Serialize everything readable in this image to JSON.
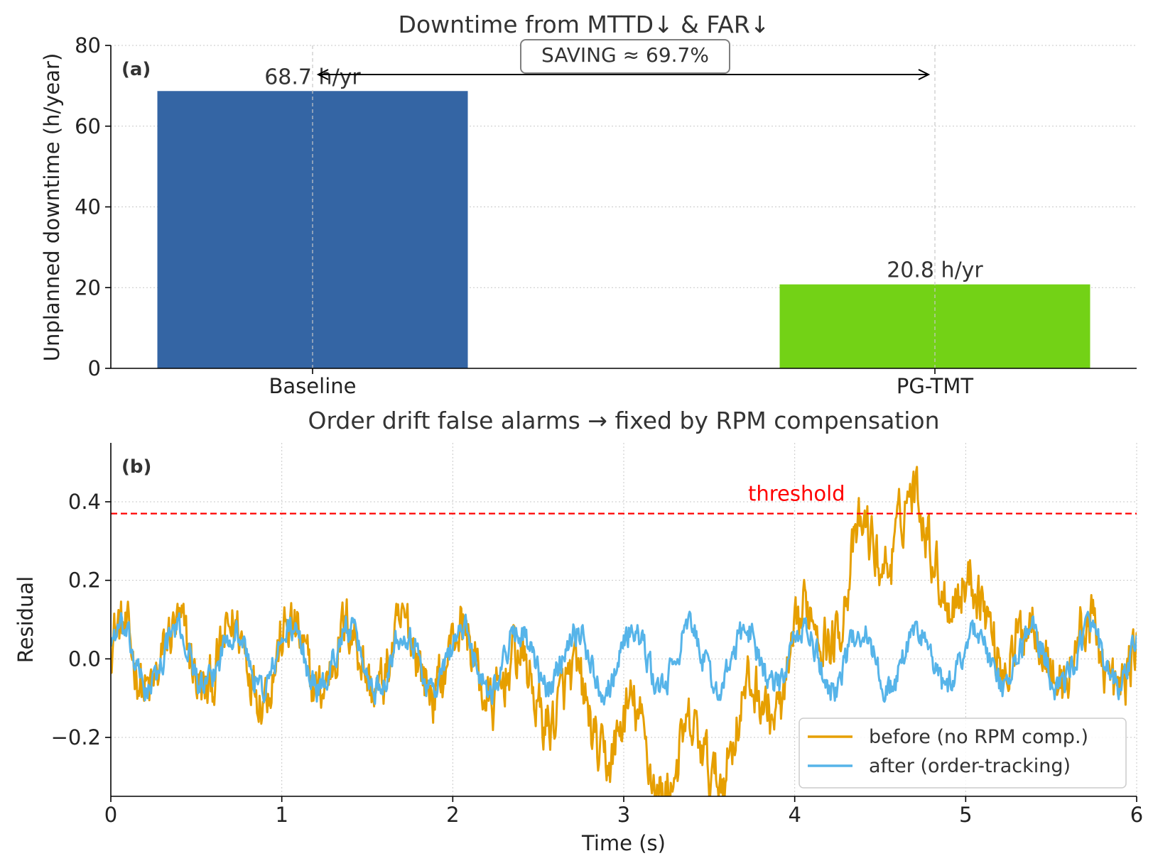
{
  "chart_data": [
    {
      "panel_label": "(a)",
      "type": "bar",
      "title": "Downtime from MTTD↓ & FAR↓",
      "xlabel": "",
      "ylabel": "Unplanned downtime (h/year)",
      "ylim": [
        0,
        80
      ],
      "yticks": [
        "0",
        "20",
        "40",
        "60",
        "80"
      ],
      "categories": [
        "Baseline",
        "PG-TMT"
      ],
      "values": [
        68.7,
        20.8
      ],
      "colors": [
        "#3465a4",
        "#73d216"
      ],
      "bar_labels": [
        "68.7 h/yr",
        "20.8 h/yr"
      ],
      "annotation": "SAVING ≈ 69.7%",
      "grid": true
    },
    {
      "panel_label": "(b)",
      "type": "line",
      "title": "Order drift false alarms → fixed by RPM compensation",
      "xlabel": "Time (s)",
      "ylabel": "Residual",
      "xlim": [
        0,
        6
      ],
      "ylim": [
        -0.35,
        0.55
      ],
      "xticks": [
        "0",
        "1",
        "2",
        "3",
        "4",
        "5",
        "6"
      ],
      "yticks": [
        "−0.2",
        "0.0",
        "0.2",
        "0.4"
      ],
      "ytick_values": [
        -0.2,
        0.0,
        0.2,
        0.4
      ],
      "threshold": {
        "value": 0.37,
        "label": "threshold",
        "color": "#ff0000"
      },
      "signal": {
        "oscillation_hz": 3.0,
        "samples": 1200
      },
      "series": [
        {
          "name": "before (no RPM comp.)",
          "color": "#e69f00",
          "amplitude": 0.085,
          "noise": 0.06,
          "drift_points": [
            [
              0,
              0
            ],
            [
              2.0,
              0
            ],
            [
              2.5,
              -0.08
            ],
            [
              3.0,
              -0.2
            ],
            [
              3.3,
              -0.28
            ],
            [
              3.6,
              -0.22
            ],
            [
              3.9,
              -0.06
            ],
            [
              4.2,
              0.12
            ],
            [
              4.45,
              0.27
            ],
            [
              4.65,
              0.38
            ],
            [
              4.8,
              0.28
            ],
            [
              5.1,
              0.1
            ],
            [
              5.4,
              0.02
            ],
            [
              6.0,
              0
            ]
          ]
        },
        {
          "name": "after (order-tracking)",
          "color": "#56b4e9",
          "amplitude": 0.075,
          "noise": 0.03,
          "drift_points": [
            [
              0,
              0
            ],
            [
              6.0,
              0
            ]
          ]
        }
      ],
      "legend_position": "lower-right",
      "grid": true
    }
  ]
}
